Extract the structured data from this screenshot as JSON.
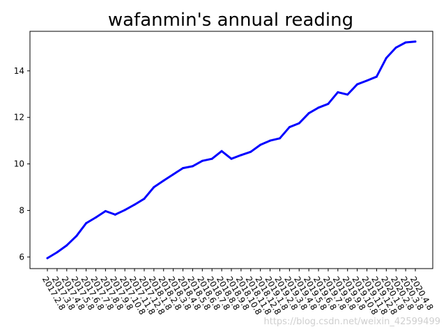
{
  "chart_data": {
    "type": "line",
    "title": "wafanmin's annual reading",
    "xlabel": "",
    "ylabel": "",
    "x": [
      "2017.2.8",
      "2017.3.8",
      "2017.4.8",
      "2017.5.8",
      "2017.6.8",
      "2017.7.8",
      "2017.8.8",
      "2017.9.8",
      "2017.10.8",
      "2017.11.8",
      "2017.12.8",
      "2018.1.8",
      "2018.2.8",
      "2018.3.8",
      "2018.4.8",
      "2018.5.8",
      "2018.6.8",
      "2018.7.8",
      "2018.8.8",
      "2018.9.8",
      "2018.10.8",
      "2018.11.8",
      "2018.12.8",
      "2019.1.8",
      "2019.2.8",
      "2019.3.8",
      "2019.4.8",
      "2019.5.8",
      "2019.6.8",
      "2019.7.8",
      "2019.8.8",
      "2019.9.8",
      "2019.10.8",
      "2019.11.8",
      "2019.12.8",
      "2020.1.8",
      "2020.2.8",
      "2020.3.8",
      "2020.4.8"
    ],
    "series": [
      {
        "values": [
          5.95,
          6.2,
          6.5,
          6.9,
          7.45,
          7.7,
          7.97,
          7.82,
          8.02,
          8.25,
          8.5,
          9.0,
          9.28,
          9.55,
          9.82,
          9.9,
          10.13,
          10.22,
          10.55,
          10.22,
          10.38,
          10.52,
          10.82,
          11.0,
          11.1,
          11.58,
          11.75,
          12.18,
          12.42,
          12.58,
          13.08,
          12.98,
          13.42,
          13.58,
          13.75,
          14.55,
          15.0,
          15.22,
          15.26
        ],
        "color": "#0000ff"
      }
    ],
    "yticks": [
      6,
      8,
      10,
      12,
      14
    ],
    "ylim": [
      5.5,
      15.7
    ],
    "grid": false,
    "legend": "none"
  },
  "watermark": "https://blog.csdn.net/weixin_42599499"
}
